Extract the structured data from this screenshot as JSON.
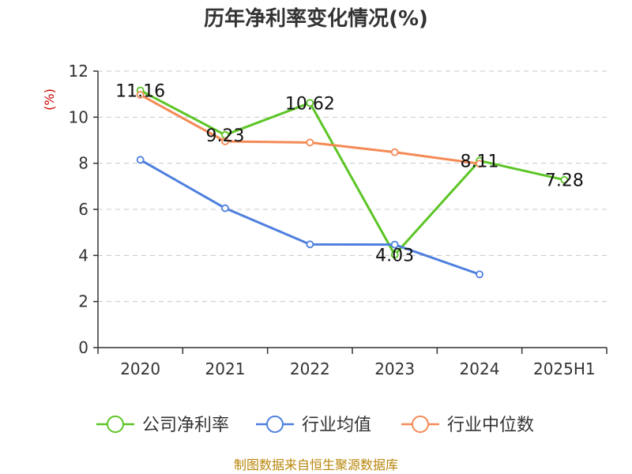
{
  "chart_data": {
    "type": "line",
    "title": "历年净利率变化情况(%)",
    "ylabel": "(%)",
    "xlabel": "",
    "categories": [
      "2020",
      "2021",
      "2022",
      "2023",
      "2024",
      "2025H1"
    ],
    "ylim": [
      0,
      12
    ],
    "yticks": [
      0,
      2,
      4,
      6,
      8,
      10,
      12
    ],
    "grid": true,
    "legend_position": "bottom",
    "series": [
      {
        "name": "公司净利率",
        "color": "#5cc526",
        "values": [
          11.16,
          9.23,
          10.62,
          4.03,
          8.11,
          7.28
        ],
        "labels": [
          "11.16",
          "9.23",
          "10.62",
          "4.03",
          "8.11",
          "7.28"
        ]
      },
      {
        "name": "行业均值",
        "color": "#4e7fde",
        "values": [
          8.15,
          6.05,
          4.48,
          4.47,
          3.18,
          null
        ]
      },
      {
        "name": "行业中位数",
        "color": "#f48a56",
        "values": [
          10.97,
          8.95,
          8.9,
          8.48,
          7.98,
          null
        ]
      }
    ],
    "source": "制图数据来自恒生聚源数据库"
  }
}
